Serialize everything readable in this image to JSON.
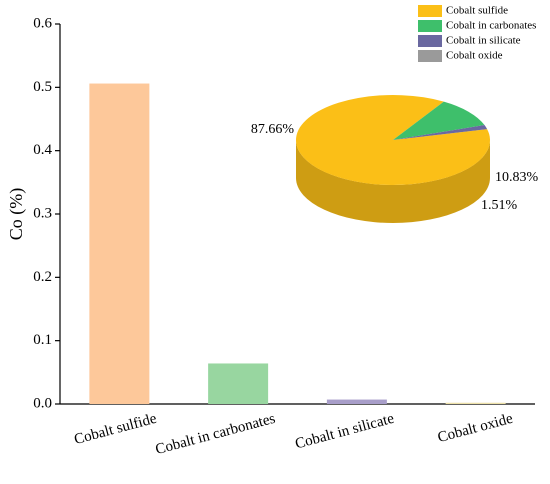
{
  "chart_data": [
    {
      "type": "bar",
      "ylabel": "Co (%)",
      "categories": [
        "Cobalt sulfide",
        "Cobalt in carbonates",
        "Cobalt in silicate",
        "Cobalt oxide"
      ],
      "values": [
        0.506,
        0.064,
        0.007,
        0.002
      ],
      "colors": [
        "#fdc89a",
        "#98d6a0",
        "#a89ec9",
        "#ece0a8"
      ],
      "ylim": [
        0,
        0.6
      ],
      "yticks": [
        {
          "value": 0,
          "label": "0.0"
        },
        0.1,
        0.2,
        0.3,
        0.4,
        0.5,
        0.6
      ]
    },
    {
      "type": "pie",
      "categories": [
        "Cobalt sulfide",
        "Cobalt in carbonates",
        "Cobalt in silicate",
        "Cobalt oxide"
      ],
      "values": [
        87.66,
        10.83,
        1.51,
        0
      ],
      "value_labels": [
        "87.66%",
        "10.83%",
        "1.51%",
        null
      ],
      "colors": [
        "#fbbf17",
        "#3ebf6b",
        "#6a68a0",
        "#9a9a9a"
      ]
    }
  ]
}
